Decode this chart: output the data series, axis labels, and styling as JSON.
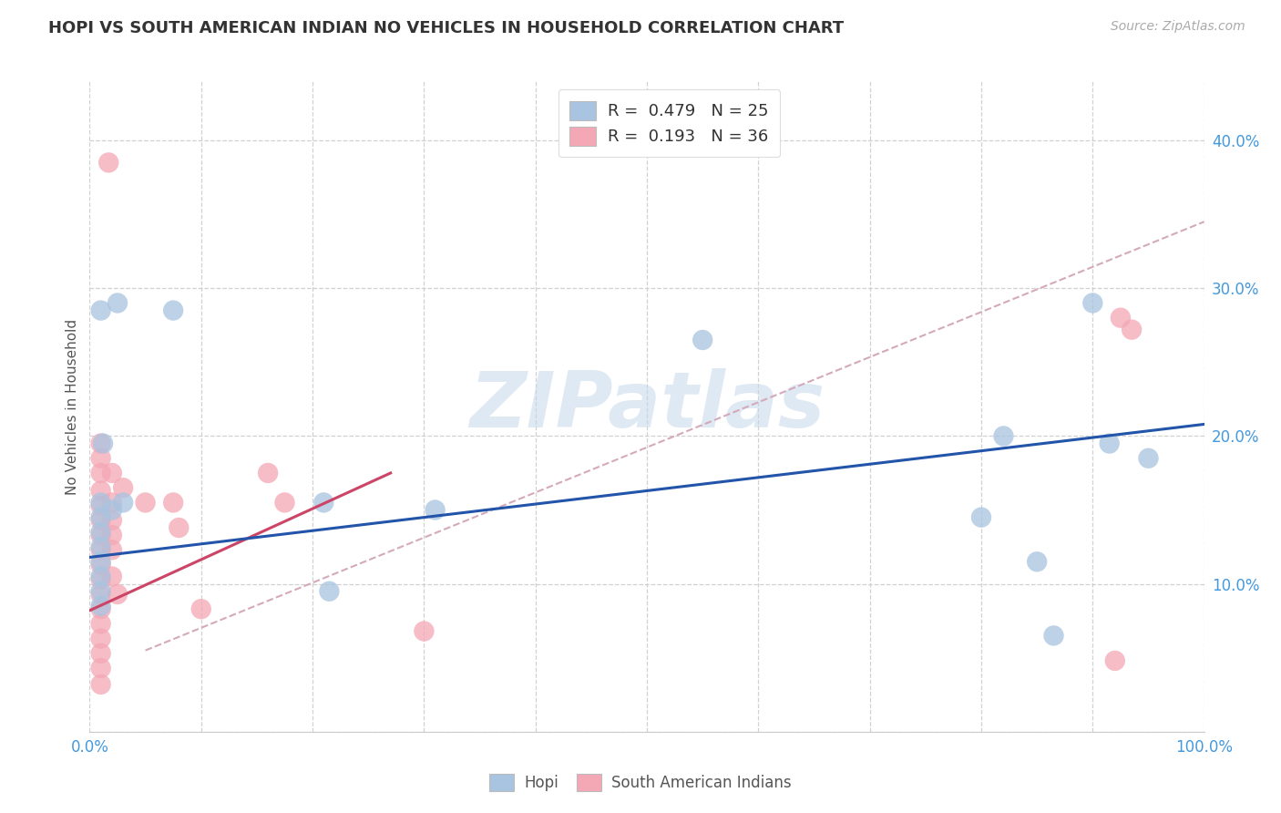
{
  "title": "HOPI VS SOUTH AMERICAN INDIAN NO VEHICLES IN HOUSEHOLD CORRELATION CHART",
  "source": "Source: ZipAtlas.com",
  "ylabel": "No Vehicles in Household",
  "xlim": [
    0.0,
    1.0
  ],
  "ylim": [
    0.0,
    0.44
  ],
  "ytick_vals": [
    0.0,
    0.1,
    0.2,
    0.3,
    0.4
  ],
  "ytick_labels": [
    "",
    "10.0%",
    "20.0%",
    "30.0%",
    "40.0%"
  ],
  "xtick_vals": [
    0.0,
    0.1,
    0.2,
    0.3,
    0.4,
    0.5,
    0.6,
    0.7,
    0.8,
    0.9,
    1.0
  ],
  "xtick_labels": [
    "0.0%",
    "",
    "",
    "",
    "",
    "",
    "",
    "",
    "",
    "",
    "100.0%"
  ],
  "hopi_R": "0.479",
  "hopi_N": "25",
  "sa_R": "0.193",
  "sa_N": "36",
  "hopi_scatter_color": "#a8c4e0",
  "sa_scatter_color": "#f4a7b5",
  "hopi_line_color": "#2255aa",
  "sa_line_color": "#cc4466",
  "dashed_line_color": "#d4aabb",
  "watermark_color": "#c5d8ea",
  "watermark_text": "ZIPatlas",
  "background_color": "#ffffff",
  "grid_color": "#cccccc",
  "tick_color": "#4499dd",
  "title_color": "#333333",
  "ylabel_color": "#555555",
  "hopi_points": [
    [
      0.01,
      0.285
    ],
    [
      0.025,
      0.29
    ],
    [
      0.075,
      0.285
    ],
    [
      0.012,
      0.195
    ],
    [
      0.01,
      0.155
    ],
    [
      0.01,
      0.145
    ],
    [
      0.01,
      0.135
    ],
    [
      0.01,
      0.125
    ],
    [
      0.01,
      0.115
    ],
    [
      0.01,
      0.105
    ],
    [
      0.01,
      0.095
    ],
    [
      0.01,
      0.085
    ],
    [
      0.02,
      0.15
    ],
    [
      0.03,
      0.155
    ],
    [
      0.21,
      0.155
    ],
    [
      0.215,
      0.095
    ],
    [
      0.31,
      0.15
    ],
    [
      0.55,
      0.265
    ],
    [
      0.8,
      0.145
    ],
    [
      0.82,
      0.2
    ],
    [
      0.85,
      0.115
    ],
    [
      0.9,
      0.29
    ],
    [
      0.915,
      0.195
    ],
    [
      0.95,
      0.185
    ],
    [
      0.865,
      0.065
    ]
  ],
  "sa_points": [
    [
      0.017,
      0.385
    ],
    [
      0.01,
      0.195
    ],
    [
      0.01,
      0.185
    ],
    [
      0.01,
      0.175
    ],
    [
      0.01,
      0.163
    ],
    [
      0.01,
      0.153
    ],
    [
      0.01,
      0.143
    ],
    [
      0.01,
      0.133
    ],
    [
      0.01,
      0.123
    ],
    [
      0.01,
      0.113
    ],
    [
      0.01,
      0.103
    ],
    [
      0.01,
      0.093
    ],
    [
      0.01,
      0.083
    ],
    [
      0.01,
      0.073
    ],
    [
      0.01,
      0.063
    ],
    [
      0.01,
      0.053
    ],
    [
      0.01,
      0.043
    ],
    [
      0.01,
      0.032
    ],
    [
      0.02,
      0.175
    ],
    [
      0.02,
      0.155
    ],
    [
      0.02,
      0.143
    ],
    [
      0.02,
      0.133
    ],
    [
      0.02,
      0.123
    ],
    [
      0.02,
      0.105
    ],
    [
      0.025,
      0.093
    ],
    [
      0.03,
      0.165
    ],
    [
      0.05,
      0.155
    ],
    [
      0.075,
      0.155
    ],
    [
      0.08,
      0.138
    ],
    [
      0.1,
      0.083
    ],
    [
      0.16,
      0.175
    ],
    [
      0.175,
      0.155
    ],
    [
      0.3,
      0.068
    ],
    [
      0.92,
      0.048
    ],
    [
      0.925,
      0.28
    ],
    [
      0.935,
      0.272
    ]
  ],
  "hopi_line_x0": 0.0,
  "hopi_line_y0": 0.118,
  "hopi_line_x1": 1.0,
  "hopi_line_y1": 0.208,
  "sa_line_x0": 0.0,
  "sa_line_y0": 0.082,
  "sa_line_x1": 0.27,
  "sa_line_y1": 0.175,
  "dashed_line_x0": 0.05,
  "dashed_line_y0": 0.055,
  "dashed_line_x1": 1.0,
  "dashed_line_y1": 0.345
}
